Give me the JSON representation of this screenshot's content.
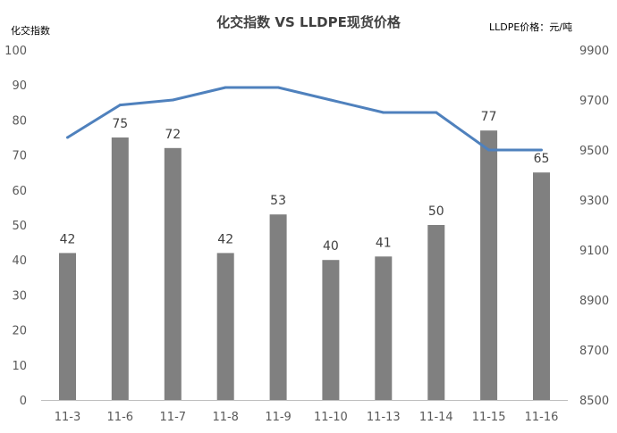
{
  "chart_data": {
    "type": "bar",
    "title": "化交指数 VS LLDPE现货价格",
    "ylabel": "化交指数",
    "y2label": "LLDPE价格：元/吨",
    "xlabel": "",
    "categories": [
      "11-3",
      "11-6",
      "11-7",
      "11-8",
      "11-9",
      "11-10",
      "11-13",
      "11-14",
      "11-15",
      "11-16"
    ],
    "ylim": [
      0,
      100
    ],
    "y2lim": [
      8500,
      9900
    ],
    "yticks": [
      "0",
      "10",
      "20",
      "30",
      "40",
      "50",
      "60",
      "70",
      "80",
      "90",
      "100"
    ],
    "y2ticks": [
      "8500",
      "8700",
      "8900",
      "9100",
      "9300",
      "9500",
      "9700",
      "9900"
    ],
    "series": [
      {
        "kind": "bar",
        "axis": "left",
        "values": [
          42,
          75,
          72,
          42,
          53,
          40,
          41,
          50,
          77,
          65
        ],
        "labels": [
          "42",
          "75",
          "72",
          "42",
          "53",
          "40",
          "41",
          "50",
          "77",
          "65"
        ],
        "color": "#808080"
      },
      {
        "kind": "line",
        "axis": "right",
        "values": [
          9550,
          9680,
          9700,
          9750,
          9750,
          9700,
          9650,
          9650,
          9500,
          9500
        ],
        "color": "#4f81bd"
      }
    ],
    "grid": false,
    "legend": "none"
  }
}
